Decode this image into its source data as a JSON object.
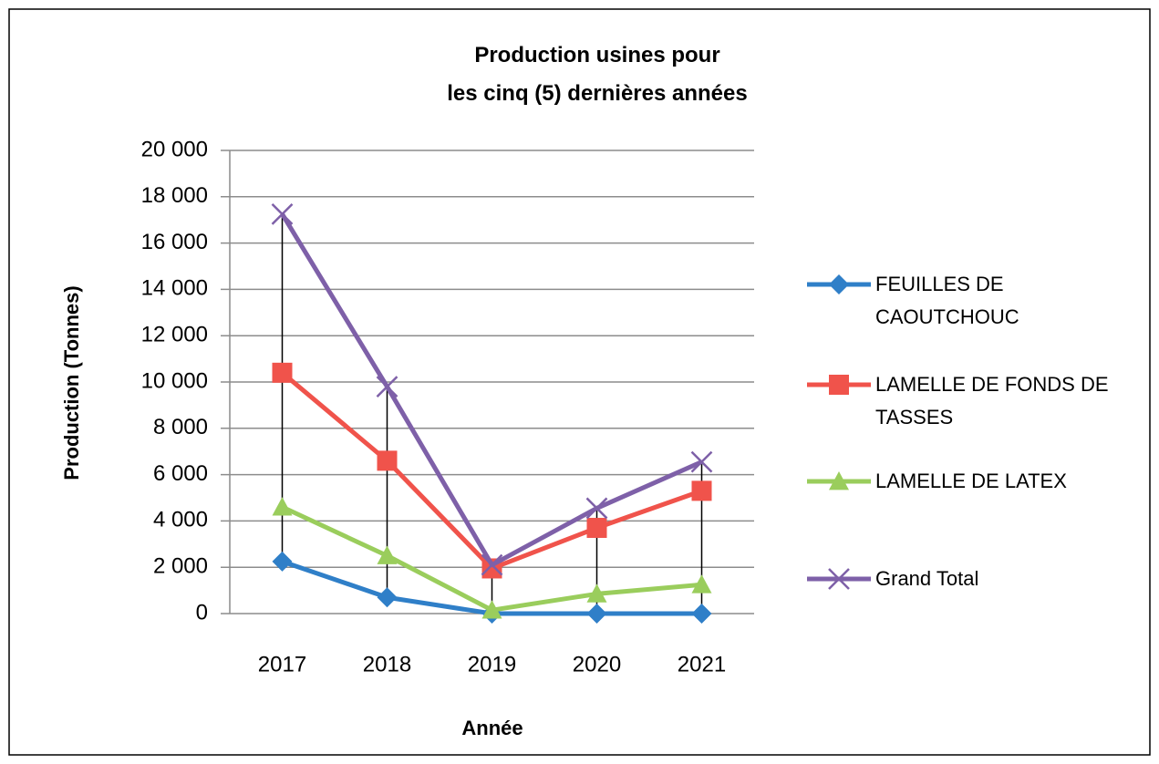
{
  "chart_data": {
    "type": "line",
    "title": "Production usines pour\nles cinq (5) dernières années",
    "x_label": "Année",
    "y_label": "Production (Tonnes)",
    "categories": [
      "2017",
      "2018",
      "2019",
      "2020",
      "2021"
    ],
    "series": [
      {
        "name": "FEUILLES DE CAOUTCHOUC",
        "color": "#2f7fc8",
        "marker": "diamond",
        "values": [
          2250,
          700,
          0,
          0,
          0
        ]
      },
      {
        "name": "LAMELLE DE  FONDS DE TASSES",
        "color": "#f0534b",
        "marker": "square",
        "values": [
          10400,
          6600,
          1950,
          3700,
          5300
        ]
      },
      {
        "name": "LAMELLE DE LATEX",
        "color": "#9acd5c",
        "marker": "triangle",
        "values": [
          4600,
          2500,
          150,
          850,
          1250
        ]
      },
      {
        "name": "Grand Total",
        "color": "#7e60a8",
        "marker": "x",
        "values": [
          17250,
          9800,
          2100,
          4550,
          6550
        ]
      }
    ],
    "ylim": [
      0,
      20000
    ],
    "yticks": [
      {
        "value": 0,
        "label": "0"
      },
      {
        "value": 2000,
        "label": "2 000"
      },
      {
        "value": 4000,
        "label": "4 000"
      },
      {
        "value": 6000,
        "label": "6 000"
      },
      {
        "value": 8000,
        "label": "8 000"
      },
      {
        "value": 10000,
        "label": "10 000"
      },
      {
        "value": 12000,
        "label": "12 000"
      },
      {
        "value": 14000,
        "label": "14 000"
      },
      {
        "value": 16000,
        "label": "16 000"
      },
      {
        "value": 18000,
        "label": "18 000"
      },
      {
        "value": 20000,
        "label": "20 000"
      }
    ],
    "grid": true,
    "drop_lines": true,
    "legend": "right"
  }
}
